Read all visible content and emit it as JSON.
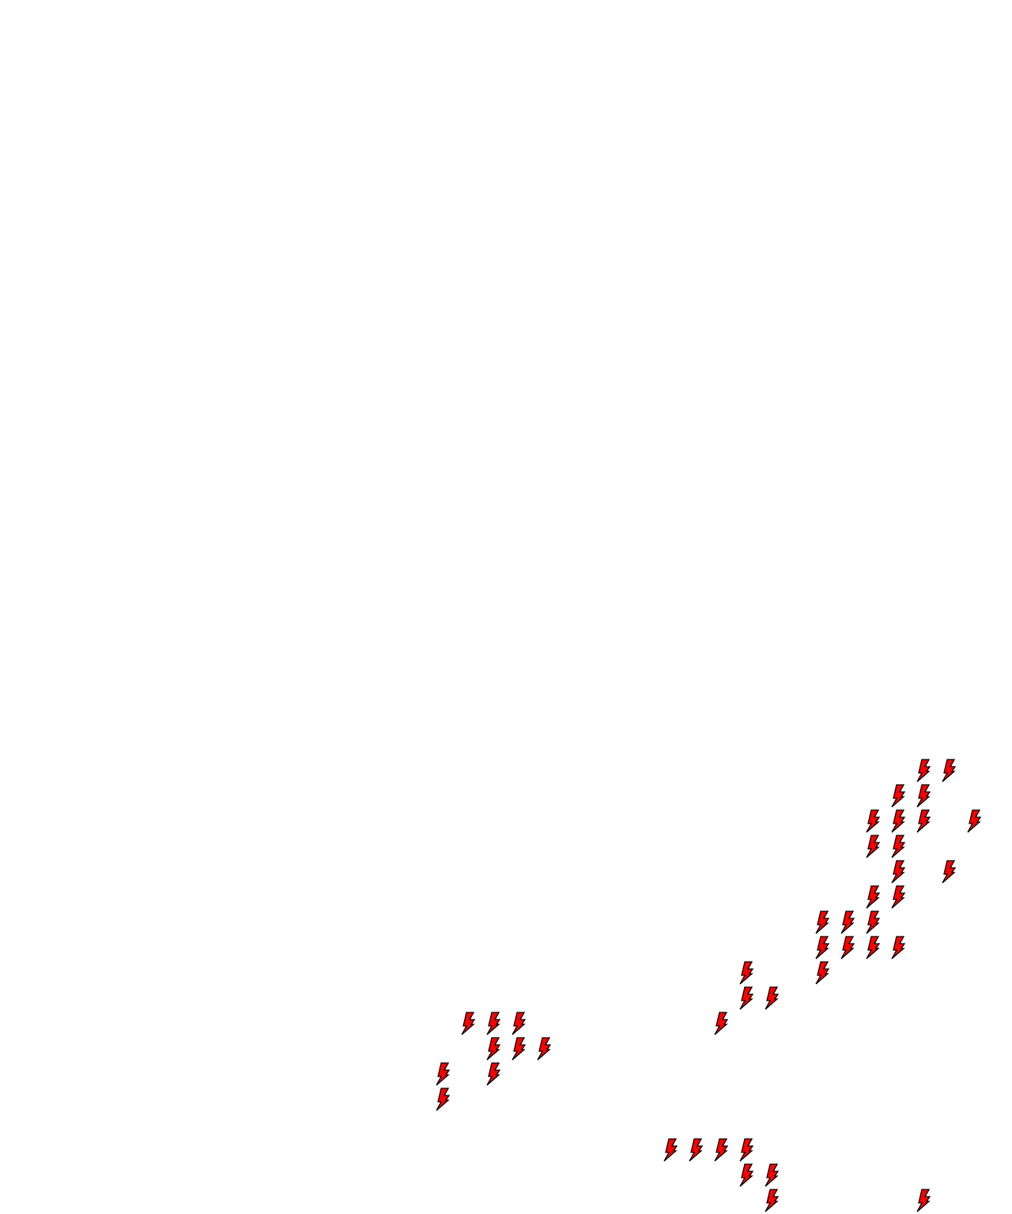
{
  "map": {
    "marker_icon": "lightning-bolt-icon",
    "marker_fill": "#ff0000",
    "marker_stroke": "#000000",
    "background": "#ffffff"
  }
}
